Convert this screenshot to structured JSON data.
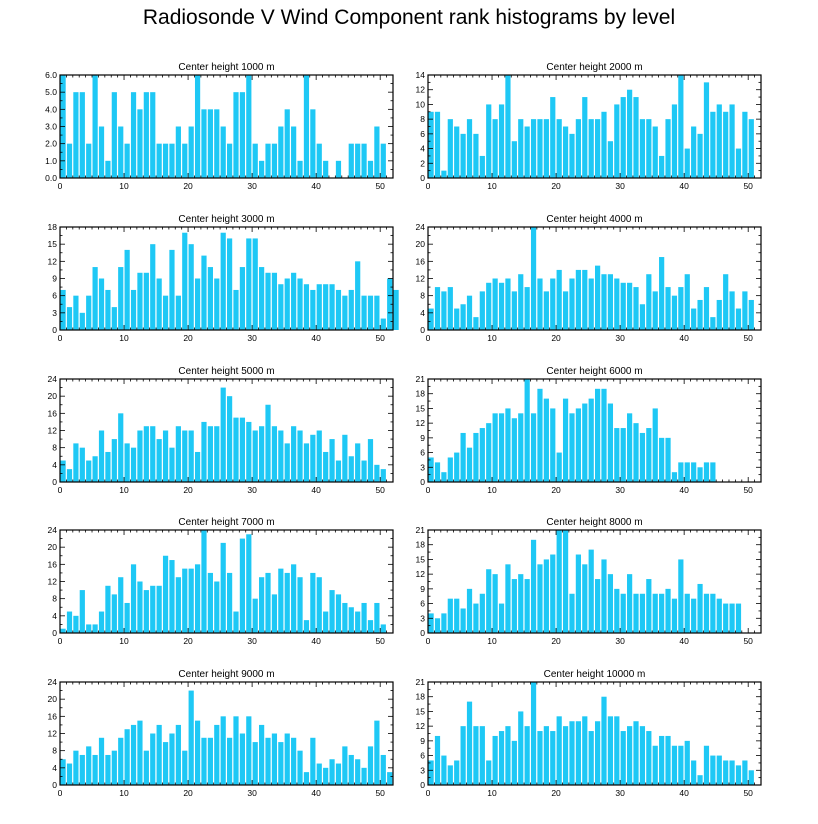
{
  "title": "Radiosonde V Wind Component rank histograms by level",
  "colors": {
    "bar": "#1ec8f5",
    "axis": "#000000"
  },
  "chart_data": [
    {
      "type": "bar",
      "title": "Center height 1000 m",
      "xlim": [
        0,
        52
      ],
      "ylim": [
        0,
        6
      ],
      "xticks": [
        0,
        10,
        20,
        30,
        40,
        50
      ],
      "yticks": [
        0,
        1,
        2,
        3,
        4,
        5,
        6
      ],
      "ytick_labels": [
        "0.0",
        "1.0",
        "2.0",
        "3.0",
        "4.0",
        "5.0",
        "6.0"
      ],
      "values": [
        6,
        2,
        5,
        5,
        2,
        6,
        3,
        1,
        5,
        3,
        2,
        5,
        4,
        5,
        5,
        2,
        2,
        2,
        3,
        2,
        3,
        6,
        4,
        4,
        4,
        3,
        2,
        5,
        5,
        6,
        2,
        1,
        2,
        2,
        3,
        4,
        3,
        1,
        6,
        4,
        2,
        1,
        0,
        1,
        0,
        2,
        2,
        2,
        1,
        3,
        2
      ]
    },
    {
      "type": "bar",
      "title": "Center height 2000 m",
      "xlim": [
        0,
        52
      ],
      "ylim": [
        0,
        14
      ],
      "xticks": [
        0,
        10,
        20,
        30,
        40,
        50
      ],
      "yticks": [
        0,
        2,
        4,
        6,
        8,
        10,
        12,
        14
      ],
      "ytick_labels": [
        "0",
        "2",
        "4",
        "6",
        "8",
        "10",
        "12",
        "14"
      ],
      "values": [
        9,
        9,
        1,
        8,
        7,
        6,
        8,
        6,
        3,
        10,
        8,
        10,
        14,
        5,
        8,
        7,
        8,
        8,
        8,
        11,
        8,
        7,
        6,
        8,
        11,
        8,
        8,
        9,
        5,
        10,
        11,
        12,
        11,
        8,
        8,
        7,
        3,
        8,
        10,
        14,
        4,
        7,
        6,
        13,
        9,
        10,
        9,
        10,
        4,
        9,
        8
      ]
    },
    {
      "type": "bar",
      "title": "Center height 3000 m",
      "xlim": [
        0,
        52
      ],
      "ylim": [
        0,
        18
      ],
      "xticks": [
        0,
        10,
        20,
        30,
        40,
        50
      ],
      "yticks": [
        0,
        3,
        6,
        9,
        12,
        15,
        18
      ],
      "ytick_labels": [
        "0",
        "3",
        "6",
        "9",
        "12",
        "15",
        "18"
      ],
      "values": [
        7,
        4,
        6,
        3,
        6,
        11,
        9,
        7,
        4,
        11,
        14,
        7,
        10,
        10,
        15,
        9,
        6,
        14,
        6,
        17,
        15,
        9,
        13,
        11,
        9,
        17,
        16,
        7,
        11,
        16,
        16,
        11,
        10,
        10,
        8,
        9,
        10,
        9,
        8,
        7,
        8,
        8,
        8,
        7,
        6,
        7,
        12,
        6,
        6,
        6,
        2,
        9,
        7
      ]
    },
    {
      "type": "bar",
      "title": "Center height 4000 m",
      "xlim": [
        0,
        52
      ],
      "ylim": [
        0,
        24
      ],
      "xticks": [
        0,
        10,
        20,
        30,
        40,
        50
      ],
      "yticks": [
        0,
        4,
        8,
        12,
        16,
        20,
        24
      ],
      "ytick_labels": [
        "0",
        "4",
        "8",
        "12",
        "16",
        "20",
        "24"
      ],
      "values": [
        5,
        10,
        9,
        10,
        5,
        6,
        8,
        3,
        9,
        11,
        12,
        11,
        12,
        9,
        13,
        10,
        24,
        12,
        9,
        12,
        14,
        9,
        12,
        14,
        14,
        12,
        15,
        13,
        13,
        12,
        11,
        11,
        10,
        6,
        13,
        9,
        17,
        10,
        8,
        10,
        13,
        5,
        7,
        10,
        3,
        7,
        13,
        9,
        5,
        9,
        7
      ]
    },
    {
      "type": "bar",
      "title": "Center height 5000 m",
      "xlim": [
        0,
        52
      ],
      "ylim": [
        0,
        24
      ],
      "xticks": [
        0,
        10,
        20,
        30,
        40,
        50
      ],
      "yticks": [
        0,
        4,
        8,
        12,
        16,
        20,
        24
      ],
      "ytick_labels": [
        "0",
        "4",
        "8",
        "12",
        "16",
        "20",
        "24"
      ],
      "values": [
        5,
        3,
        9,
        8,
        5,
        6,
        12,
        7,
        10,
        16,
        9,
        8,
        12,
        13,
        13,
        10,
        12,
        8,
        13,
        12,
        12,
        7,
        14,
        13,
        13,
        22,
        20,
        15,
        15,
        14,
        12,
        13,
        18,
        13,
        12,
        9,
        13,
        12,
        9,
        11,
        12,
        7,
        10,
        5,
        11,
        6,
        9,
        5,
        10,
        4,
        3
      ]
    },
    {
      "type": "bar",
      "title": "Center height 6000 m",
      "xlim": [
        0,
        52
      ],
      "ylim": [
        0,
        21
      ],
      "xticks": [
        0,
        10,
        20,
        30,
        40,
        50
      ],
      "yticks": [
        0,
        3,
        6,
        9,
        12,
        15,
        18,
        21
      ],
      "ytick_labels": [
        "0",
        "3",
        "6",
        "9",
        "12",
        "15",
        "18",
        "21"
      ],
      "values": [
        5,
        4,
        2,
        5,
        6,
        10,
        7,
        10,
        11,
        12,
        14,
        14,
        15,
        13,
        14,
        21,
        14,
        19,
        17,
        15,
        6,
        17,
        14,
        15,
        16,
        17,
        19,
        19,
        16,
        11,
        11,
        14,
        12,
        10,
        11,
        15,
        9,
        9,
        2,
        4,
        4,
        4,
        3,
        4,
        4
      ]
    },
    {
      "type": "bar",
      "title": "Center height 7000 m",
      "xlim": [
        0,
        52
      ],
      "ylim": [
        0,
        24
      ],
      "xticks": [
        0,
        10,
        20,
        30,
        40,
        50
      ],
      "yticks": [
        0,
        4,
        8,
        12,
        16,
        20,
        24
      ],
      "ytick_labels": [
        "0",
        "4",
        "8",
        "12",
        "16",
        "20",
        "24"
      ],
      "values": [
        1,
        5,
        4,
        10,
        2,
        2,
        5,
        11,
        9,
        13,
        7,
        16,
        12,
        10,
        11,
        11,
        18,
        17,
        13,
        15,
        15,
        16,
        24,
        14,
        12,
        21,
        14,
        5,
        22,
        23,
        8,
        13,
        14,
        9,
        15,
        14,
        16,
        13,
        3,
        14,
        13,
        5,
        10,
        9,
        7,
        6,
        5,
        7,
        3,
        7,
        2
      ]
    },
    {
      "type": "bar",
      "title": "Center height 8000 m",
      "xlim": [
        0,
        52
      ],
      "ylim": [
        0,
        21
      ],
      "xticks": [
        0,
        10,
        20,
        30,
        40,
        50
      ],
      "yticks": [
        0,
        3,
        6,
        9,
        12,
        15,
        18,
        21
      ],
      "ytick_labels": [
        "0",
        "3",
        "6",
        "9",
        "12",
        "15",
        "18",
        "21"
      ],
      "values": [
        4,
        3,
        4,
        7,
        7,
        5,
        9,
        6,
        8,
        13,
        12,
        6,
        14,
        11,
        12,
        11,
        19,
        14,
        15,
        16,
        21,
        21,
        8,
        16,
        14,
        17,
        11,
        15,
        12,
        9,
        8,
        12,
        8,
        8,
        11,
        8,
        8,
        9,
        7,
        15,
        8,
        7,
        10,
        8,
        8,
        7,
        6,
        6,
        6
      ]
    },
    {
      "type": "bar",
      "title": "Center height 9000 m",
      "xlim": [
        0,
        52
      ],
      "ylim": [
        0,
        24
      ],
      "xticks": [
        0,
        10,
        20,
        30,
        40,
        50
      ],
      "yticks": [
        0,
        4,
        8,
        12,
        16,
        20,
        24
      ],
      "ytick_labels": [
        "0",
        "4",
        "8",
        "12",
        "16",
        "20",
        "24"
      ],
      "values": [
        6,
        5,
        8,
        7,
        9,
        7,
        11,
        7,
        8,
        11,
        13,
        14,
        15,
        8,
        12,
        14,
        10,
        12,
        14,
        8,
        22,
        15,
        11,
        11,
        14,
        16,
        11,
        16,
        12,
        16,
        10,
        14,
        11,
        12,
        10,
        12,
        11,
        8,
        3,
        11,
        5,
        4,
        6,
        5,
        9,
        7,
        6,
        4,
        9,
        15,
        7,
        3
      ]
    },
    {
      "type": "bar",
      "title": "Center height 10000 m",
      "xlim": [
        0,
        52
      ],
      "ylim": [
        0,
        21
      ],
      "xticks": [
        0,
        10,
        20,
        30,
        40,
        50
      ],
      "yticks": [
        0,
        3,
        6,
        9,
        12,
        15,
        18,
        21
      ],
      "ytick_labels": [
        "0",
        "3",
        "6",
        "9",
        "12",
        "15",
        "18",
        "21"
      ],
      "values": [
        5,
        10,
        6,
        4,
        5,
        12,
        17,
        12,
        12,
        5,
        10,
        11,
        12,
        9,
        15,
        12,
        21,
        11,
        12,
        11,
        14,
        12,
        13,
        13,
        14,
        11,
        13,
        18,
        14,
        14,
        11,
        12,
        13,
        12,
        11,
        8,
        10,
        10,
        8,
        8,
        9,
        5,
        2,
        8,
        6,
        6,
        5,
        5,
        4,
        5,
        3
      ]
    }
  ]
}
